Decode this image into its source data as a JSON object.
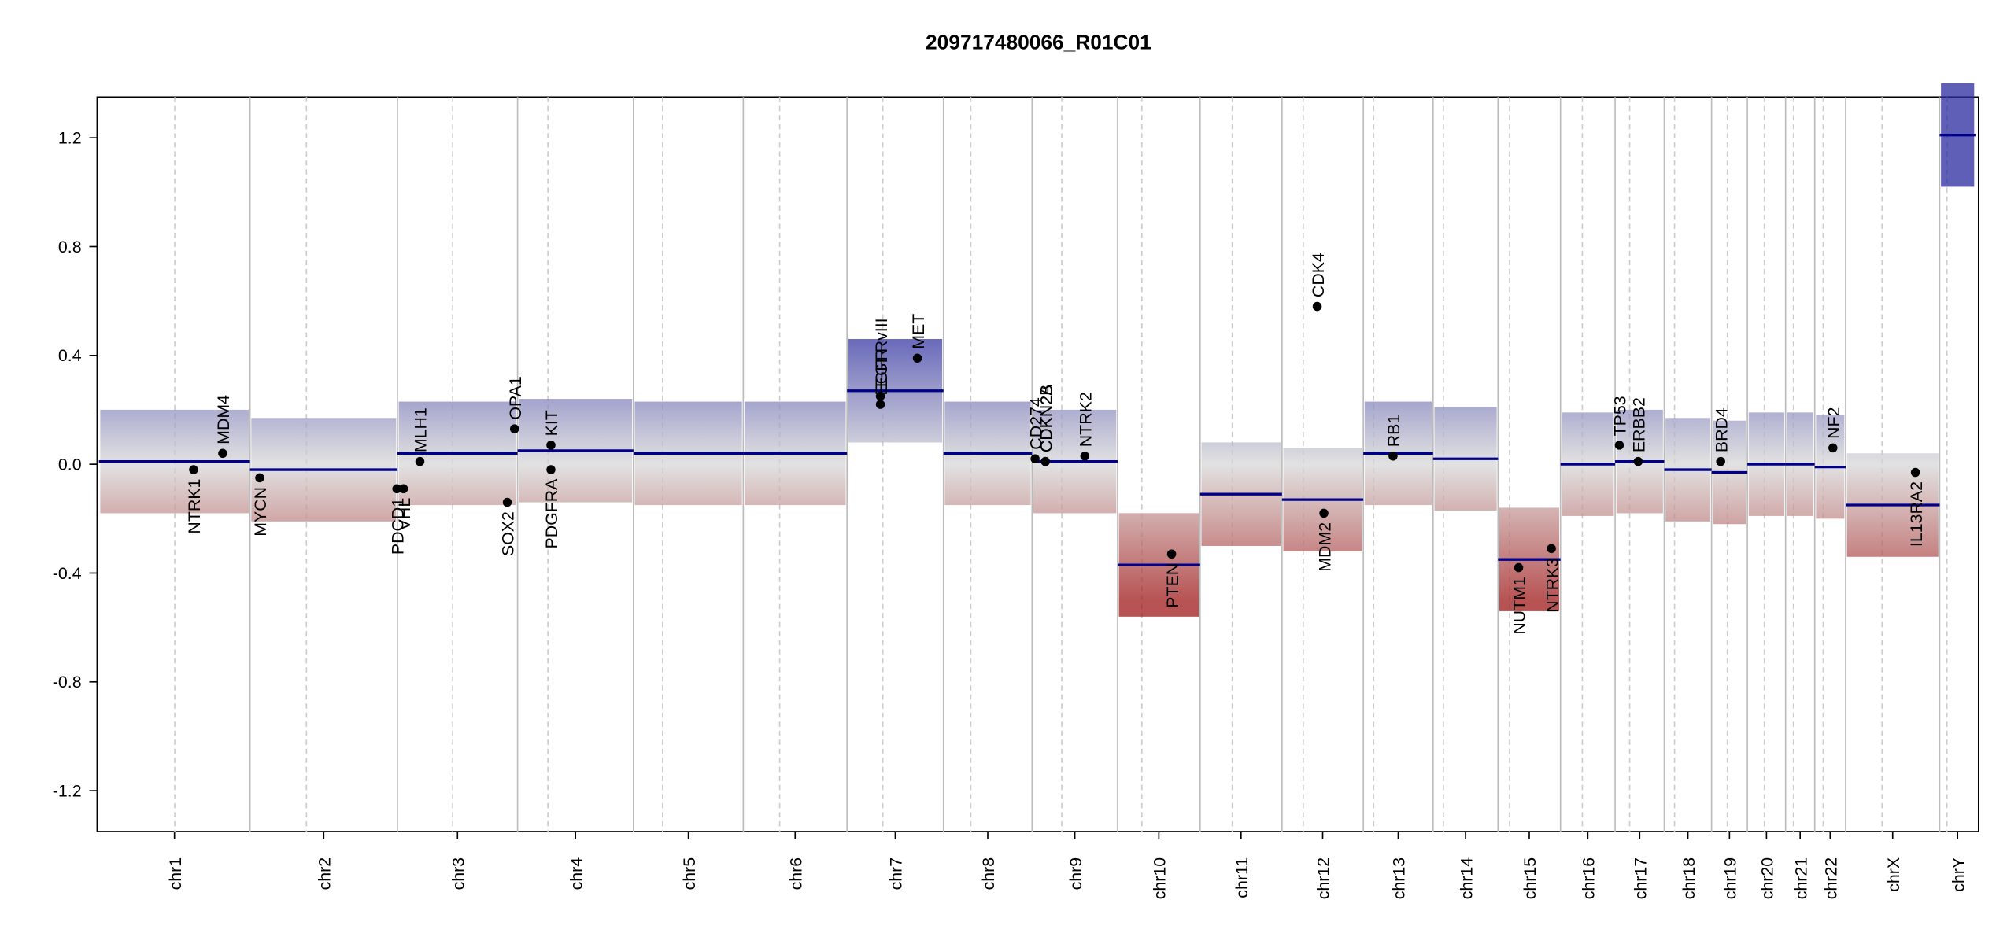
{
  "chart_data": {
    "type": "cnv",
    "title": "209717480066_R01C01",
    "xlim": [
      -3,
      3098
    ],
    "ylim": [
      -1.35,
      1.35
    ],
    "yticks": [
      -1.2,
      -0.8,
      -0.4,
      {
        "value": 0,
        "label": "0.0"
      },
      0.4,
      0.8,
      1.2
    ],
    "chromosomes": [
      "chr1",
      "chr2",
      "chr3",
      "chr4",
      "chr5",
      "chr6",
      "chr7",
      "chr8",
      "chr9",
      "chr10",
      "chr11",
      "chr12",
      "chr13",
      "chr14",
      "chr15",
      "chr16",
      "chr17",
      "chr18",
      "chr19",
      "chr20",
      "chr21",
      "chr22",
      "chrX",
      "chrY"
    ],
    "chromosome_bounds": [
      0,
      249,
      492,
      690,
      881,
      1062,
      1233,
      1392,
      1538,
      1679,
      1815,
      1950,
      2084,
      2199,
      2306,
      2409,
      2499,
      2580,
      2658,
      2717,
      2780,
      2828,
      2879,
      3034,
      3093
    ],
    "centromeres": [
      125,
      342,
      583,
      740,
      929,
      1122,
      1292,
      1437,
      1587,
      1719,
      1868,
      1985,
      2101,
      2216,
      2325,
      2445,
      2523,
      2597,
      2684,
      2745,
      2793,
      2842,
      2939,
      3046
    ],
    "segment_color": "#00008b",
    "segments": [
      0.01,
      -0.02,
      0.04,
      0.05,
      0.04,
      0.04,
      0.27,
      0.04,
      0.01,
      -0.37,
      -0.11,
      -0.13,
      0.04,
      0.02,
      -0.35,
      0,
      0.01,
      -0.02,
      -0.03,
      0,
      0,
      -0.01,
      -0.15,
      1.21
    ],
    "genes": {
      "names": [
        "NTRK1",
        "MDM4",
        "MYCN",
        "PDCD1",
        "VHL",
        "MLH1",
        "SOX2",
        "OPA1",
        "PDGFRA",
        "KIT",
        "EGFR",
        "EGFRvIII",
        "MET",
        "CD274",
        "CDKN2A",
        "CDKN2B",
        "NTRK2",
        "PTEN",
        "CDK4",
        "MDM2",
        "RB1",
        "NUTM1",
        "NTRK3",
        "TP53",
        "ERBB2",
        "BRD4",
        "NF2",
        "IL13RA2"
      ],
      "x": [
        156,
        204,
        265,
        491,
        502,
        529,
        673,
        685,
        745,
        745,
        1288,
        1288,
        1349,
        1543,
        1560,
        1560,
        1625,
        1768,
        2008,
        2019,
        2133,
        2340,
        2394,
        2506,
        2537,
        2673,
        2858,
        2994
      ],
      "values": [
        -0.02,
        0.04,
        -0.05,
        -0.09,
        -0.09,
        0.01,
        -0.14,
        0.13,
        -0.02,
        0.07,
        0.22,
        0.25,
        0.39,
        0.02,
        0.01,
        0.01,
        0.03,
        -0.33,
        0.58,
        -0.18,
        0.03,
        -0.38,
        -0.31,
        0.07,
        0.01,
        0.01,
        0.06,
        -0.03
      ]
    }
  }
}
